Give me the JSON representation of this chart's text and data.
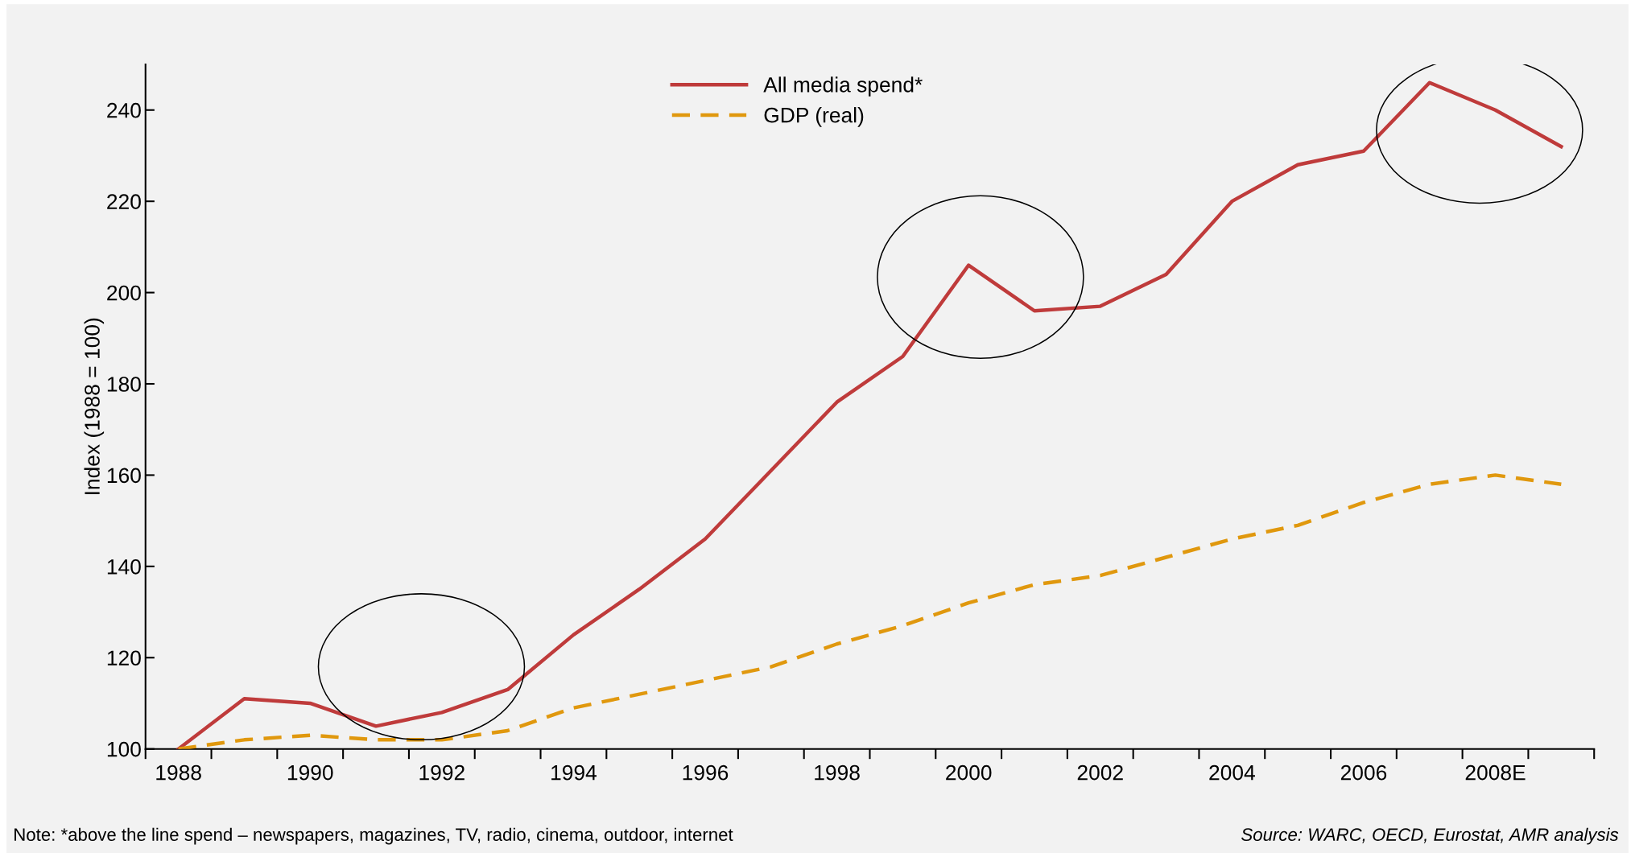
{
  "chart_data": {
    "type": "line",
    "ylabel": "Index (1988 = 100)",
    "categories": [
      "1988",
      null,
      "1990",
      null,
      "1992",
      null,
      "1994",
      null,
      "1996",
      null,
      "1998",
      null,
      "2000",
      null,
      "2002",
      null,
      "2004",
      null,
      "2006",
      null,
      "2008E",
      null
    ],
    "series": [
      {
        "name": "All media spend*",
        "color": "#bf3b3b",
        "line_style": "solid",
        "values": [
          100,
          111,
          110,
          105,
          108,
          113,
          125,
          135,
          146,
          161,
          176,
          186,
          206,
          196,
          197,
          204,
          220,
          228,
          231,
          246,
          240,
          232
        ]
      },
      {
        "name": "GDP (real)",
        "color": "#e0980e",
        "line_style": "dashed",
        "values": [
          100,
          102,
          103,
          102,
          102,
          104,
          109,
          112,
          115,
          118,
          123,
          127,
          132,
          136,
          138,
          142,
          146,
          149,
          154,
          158,
          160,
          158
        ]
      }
    ],
    "ylim": [
      100,
      250
    ],
    "yticks": [
      100,
      120,
      140,
      160,
      180,
      200,
      220,
      240
    ],
    "grid": false,
    "legend": "top",
    "marker": "none",
    "annotations": [
      "Note: *above the line spend – newspapers, magazines, TV, radio, cinema, outdoor, internet",
      "Source: WARC, OECD, Eurostat, AMR analysis"
    ]
  }
}
